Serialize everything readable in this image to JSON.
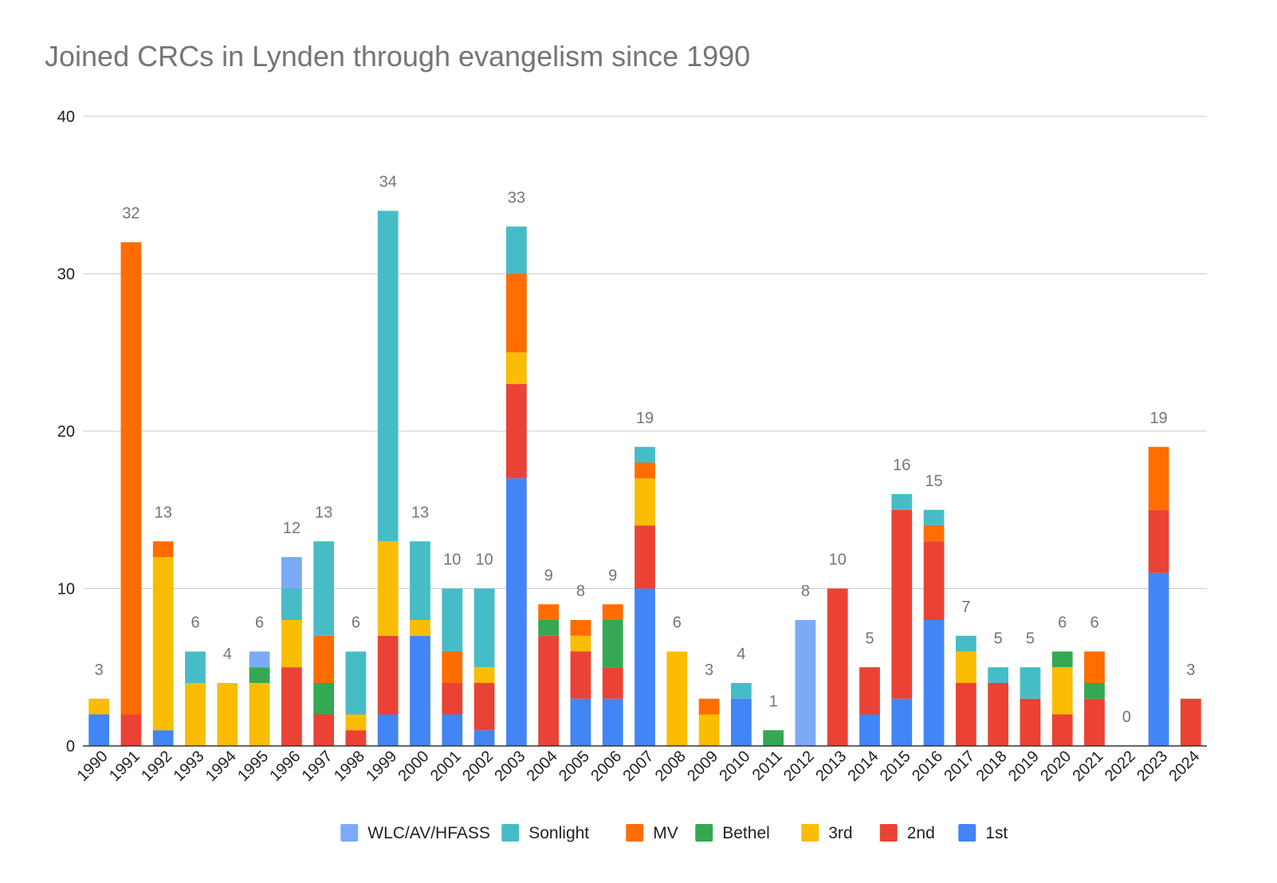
{
  "chart_data": {
    "type": "bar",
    "stacked": true,
    "title": "Joined CRCs in Lynden through evangelism since 1990",
    "xlabel": "",
    "ylabel": "",
    "ylim": [
      0,
      40
    ],
    "yticks": [
      "0",
      "10",
      "20",
      "30",
      "40"
    ],
    "grid": true,
    "legend_position": "bottom",
    "categories": [
      "1990",
      "1991",
      "1992",
      "1993",
      "1994",
      "1995",
      "1996",
      "1997",
      "1998",
      "1999",
      "2000",
      "2001",
      "2002",
      "2003",
      "2004",
      "2005",
      "2006",
      "2007",
      "2008",
      "2009",
      "2010",
      "2011",
      "2012",
      "2013",
      "2014",
      "2015",
      "2016",
      "2017",
      "2018",
      "2019",
      "2020",
      "2021",
      "2022",
      "2023",
      "2024"
    ],
    "series": [
      {
        "name": "1st",
        "color": "#4285f4",
        "values": [
          2,
          0,
          1,
          0,
          0,
          0,
          0,
          0,
          0,
          2,
          7,
          2,
          1,
          17,
          0,
          3,
          3,
          10,
          0,
          0,
          3,
          0,
          0,
          0,
          2,
          3,
          8,
          0,
          0,
          0,
          0,
          0,
          0,
          11,
          0
        ]
      },
      {
        "name": "2nd",
        "color": "#ea4335",
        "values": [
          0,
          2,
          0,
          0,
          0,
          0,
          5,
          2,
          1,
          5,
          0,
          2,
          3,
          6,
          7,
          3,
          2,
          4,
          0,
          0,
          0,
          0,
          0,
          10,
          3,
          12,
          5,
          4,
          4,
          3,
          2,
          3,
          0,
          4,
          3
        ]
      },
      {
        "name": "3rd",
        "color": "#fbbc04",
        "values": [
          1,
          0,
          11,
          4,
          4,
          4,
          3,
          0,
          1,
          6,
          1,
          0,
          1,
          2,
          0,
          1,
          0,
          3,
          6,
          2,
          0,
          0,
          0,
          0,
          0,
          0,
          0,
          2,
          0,
          0,
          3,
          0,
          0,
          0,
          0
        ]
      },
      {
        "name": "Bethel",
        "color": "#34a853",
        "values": [
          0,
          0,
          0,
          0,
          0,
          1,
          0,
          2,
          0,
          0,
          0,
          0,
          0,
          0,
          1,
          0,
          3,
          0,
          0,
          0,
          0,
          1,
          0,
          0,
          0,
          0,
          0,
          0,
          0,
          0,
          1,
          1,
          0,
          0,
          0
        ]
      },
      {
        "name": "MV",
        "color": "#ff6d01",
        "values": [
          0,
          30,
          1,
          0,
          0,
          0,
          0,
          3,
          0,
          0,
          0,
          2,
          0,
          5,
          1,
          1,
          1,
          1,
          0,
          1,
          0,
          0,
          0,
          0,
          0,
          0,
          1,
          0,
          0,
          0,
          0,
          2,
          0,
          4,
          0
        ]
      },
      {
        "name": "Sonlight",
        "color": "#46bdc6",
        "values": [
          0,
          0,
          0,
          2,
          0,
          0,
          2,
          6,
          4,
          21,
          5,
          4,
          5,
          3,
          0,
          0,
          0,
          1,
          0,
          0,
          1,
          0,
          0,
          0,
          0,
          1,
          1,
          1,
          1,
          2,
          0,
          0,
          0,
          0,
          0
        ]
      },
      {
        "name": "WLC/AV/HFASS",
        "color": "#7baaf7",
        "values": [
          0,
          0,
          0,
          0,
          0,
          1,
          2,
          0,
          0,
          0,
          0,
          0,
          0,
          0,
          0,
          0,
          0,
          0,
          0,
          0,
          0,
          0,
          8,
          0,
          0,
          0,
          0,
          0,
          0,
          0,
          0,
          0,
          0,
          0,
          0
        ]
      }
    ],
    "totals": [
      "3",
      "32",
      "13",
      "6",
      "4",
      "6",
      "12",
      "13",
      "6",
      "34",
      "13",
      "10",
      "10",
      "33",
      "9",
      "8",
      "9",
      "19",
      "6",
      "3",
      "4",
      "1",
      "8",
      "10",
      "5",
      "16",
      "15",
      "7",
      "5",
      "5",
      "6",
      "6",
      "0",
      "19",
      "3"
    ],
    "legend_order": [
      "WLC/AV/HFASS",
      "Sonlight",
      "MV",
      "Bethel",
      "3rd",
      "2nd",
      "1st"
    ]
  },
  "colors": {
    "grid": "#cccccc",
    "axis": "#333333",
    "title": "#757575",
    "total_label": "#757575"
  }
}
